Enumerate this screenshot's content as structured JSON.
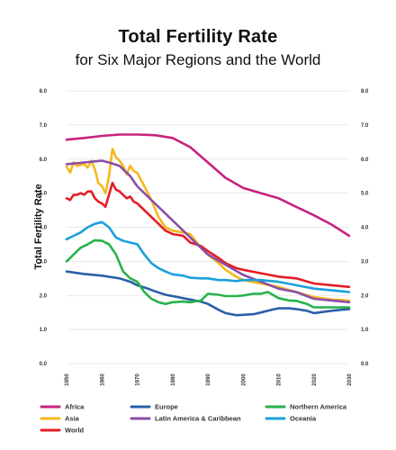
{
  "chart_data": {
    "type": "line",
    "title": "Total Fertility Rate",
    "subtitle": "for Six Major Regions and the World",
    "ylabel": "Total Fertility Rate",
    "xlabel": "",
    "xlim": [
      1950,
      2030
    ],
    "ylim": [
      0,
      8
    ],
    "x_ticks": [
      "1950",
      "1960",
      "1970",
      "1980",
      "1990",
      "2000",
      "2010",
      "2020",
      "2030"
    ],
    "y_ticks": [
      "0.0",
      "1.0",
      "2.0",
      "3.0",
      "4.0",
      "5.0",
      "6.0",
      "7.0",
      "8.0"
    ],
    "grid": true,
    "legend_position": "bottom",
    "series": [
      {
        "name": "Africa",
        "color": "#c8227f",
        "x": [
          1950,
          1955,
          1960,
          1965,
          1970,
          1975,
          1980,
          1985,
          1990,
          1995,
          2000,
          2005,
          2010,
          2015,
          2020,
          2025,
          2030
        ],
        "values": [
          6.57,
          6.62,
          6.68,
          6.72,
          6.72,
          6.7,
          6.62,
          6.35,
          5.9,
          5.45,
          5.15,
          5.0,
          4.85,
          4.6,
          4.35,
          4.08,
          3.75
        ]
      },
      {
        "name": "Asia",
        "color": "#f7b81d",
        "x": [
          1950,
          1951,
          1952,
          1953,
          1955,
          1956,
          1957,
          1958,
          1959,
          1960,
          1961,
          1962,
          1963,
          1964,
          1965,
          1966,
          1967,
          1968,
          1969,
          1970,
          1972,
          1974,
          1976,
          1978,
          1980,
          1983,
          1985,
          1988,
          1990,
          1993,
          1995,
          1998,
          2000,
          2005,
          2010,
          2015,
          2020,
          2025,
          2030
        ],
        "values": [
          5.78,
          5.6,
          5.9,
          5.8,
          5.85,
          5.75,
          5.95,
          5.7,
          5.3,
          5.2,
          5.0,
          5.5,
          6.3,
          6.05,
          5.95,
          5.8,
          5.55,
          5.8,
          5.65,
          5.6,
          5.2,
          4.8,
          4.3,
          4.0,
          3.9,
          3.85,
          3.8,
          3.4,
          3.2,
          2.95,
          2.75,
          2.55,
          2.45,
          2.35,
          2.25,
          2.1,
          1.95,
          1.88,
          1.85
        ]
      },
      {
        "name": "World",
        "color": "#e31e24",
        "x": [
          1950,
          1951,
          1952,
          1953,
          1954,
          1955,
          1956,
          1957,
          1958,
          1959,
          1960,
          1961,
          1962,
          1963,
          1964,
          1965,
          1966,
          1967,
          1968,
          1969,
          1970,
          1973,
          1976,
          1978,
          1980,
          1983,
          1985,
          1988,
          1990,
          1993,
          1995,
          1998,
          2000,
          2005,
          2010,
          2015,
          2020,
          2025,
          2030
        ],
        "values": [
          4.85,
          4.8,
          4.95,
          4.95,
          5.0,
          4.95,
          5.05,
          5.05,
          4.85,
          4.75,
          4.7,
          4.6,
          4.95,
          5.3,
          5.1,
          5.05,
          4.95,
          4.85,
          4.9,
          4.75,
          4.7,
          4.4,
          4.1,
          3.9,
          3.8,
          3.75,
          3.55,
          3.45,
          3.3,
          3.1,
          2.95,
          2.8,
          2.75,
          2.65,
          2.55,
          2.5,
          2.35,
          2.3,
          2.25
        ]
      },
      {
        "name": "Europe",
        "color": "#2b5fa8",
        "x": [
          1950,
          1955,
          1960,
          1965,
          1968,
          1970,
          1973,
          1975,
          1978,
          1980,
          1983,
          1985,
          1988,
          1990,
          1993,
          1995,
          1998,
          2000,
          2003,
          2005,
          2008,
          2010,
          2013,
          2015,
          2018,
          2020,
          2025,
          2030
        ],
        "values": [
          2.7,
          2.63,
          2.58,
          2.5,
          2.4,
          2.3,
          2.2,
          2.12,
          2.02,
          1.98,
          1.92,
          1.88,
          1.82,
          1.75,
          1.58,
          1.48,
          1.42,
          1.43,
          1.45,
          1.5,
          1.58,
          1.62,
          1.62,
          1.6,
          1.55,
          1.48,
          1.55,
          1.6
        ]
      },
      {
        "name": "Latin America & Caribbean",
        "color": "#8b4ea6",
        "x": [
          1950,
          1955,
          1960,
          1962,
          1965,
          1968,
          1970,
          1975,
          1980,
          1985,
          1990,
          1995,
          2000,
          2005,
          2010,
          2015,
          2020,
          2025,
          2030
        ],
        "values": [
          5.85,
          5.9,
          5.95,
          5.9,
          5.8,
          5.5,
          5.2,
          4.7,
          4.2,
          3.7,
          3.2,
          2.9,
          2.6,
          2.4,
          2.2,
          2.1,
          1.9,
          1.85,
          1.8
        ]
      },
      {
        "name": "Northern America",
        "color": "#27b24a",
        "x": [
          1950,
          1952,
          1954,
          1956,
          1958,
          1960,
          1962,
          1964,
          1966,
          1968,
          1970,
          1972,
          1974,
          1976,
          1978,
          1980,
          1983,
          1985,
          1988,
          1990,
          1993,
          1995,
          1998,
          2000,
          2003,
          2005,
          2007,
          2010,
          2013,
          2015,
          2018,
          2020,
          2025,
          2030
        ],
        "values": [
          3.0,
          3.2,
          3.4,
          3.5,
          3.62,
          3.6,
          3.5,
          3.2,
          2.7,
          2.5,
          2.4,
          2.1,
          1.9,
          1.8,
          1.75,
          1.8,
          1.82,
          1.8,
          1.85,
          2.05,
          2.02,
          1.98,
          1.98,
          2.0,
          2.05,
          2.05,
          2.1,
          1.92,
          1.85,
          1.84,
          1.75,
          1.65,
          1.65,
          1.65
        ]
      },
      {
        "name": "Oceania",
        "color": "#1ba0db",
        "x": [
          1950,
          1952,
          1954,
          1956,
          1958,
          1960,
          1962,
          1964,
          1966,
          1968,
          1970,
          1972,
          1974,
          1976,
          1978,
          1980,
          1983,
          1985,
          1988,
          1990,
          1993,
          1995,
          1998,
          2000,
          2005,
          2010,
          2015,
          2020,
          2025,
          2030
        ],
        "values": [
          3.65,
          3.75,
          3.85,
          4.0,
          4.1,
          4.15,
          4.0,
          3.7,
          3.6,
          3.55,
          3.5,
          3.2,
          2.95,
          2.8,
          2.7,
          2.62,
          2.58,
          2.52,
          2.5,
          2.5,
          2.45,
          2.45,
          2.42,
          2.45,
          2.45,
          2.4,
          2.3,
          2.2,
          2.15,
          2.1
        ]
      }
    ]
  }
}
